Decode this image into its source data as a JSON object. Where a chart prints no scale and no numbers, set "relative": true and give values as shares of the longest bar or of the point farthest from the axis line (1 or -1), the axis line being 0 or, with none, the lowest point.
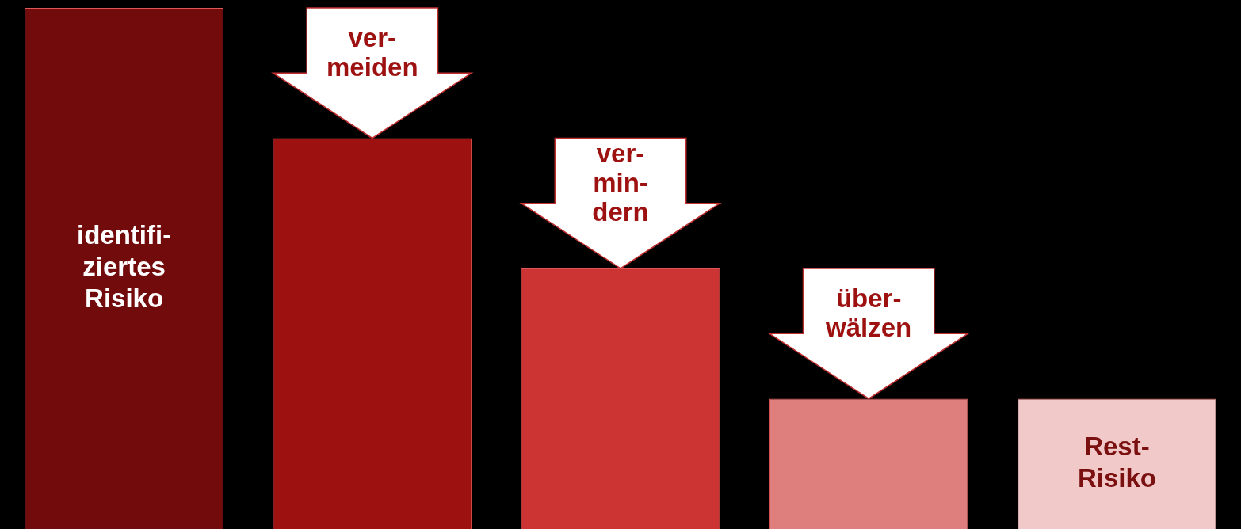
{
  "chart_data": {
    "type": "bar",
    "relative": true,
    "categories": [
      "identifi-\nziertes\nRisiko",
      null,
      null,
      null,
      "Rest-\nRisiko"
    ],
    "values": [
      1,
      0.75,
      0.5,
      0.25,
      0.25
    ],
    "colors": [
      "#720c0c",
      "#9e1111",
      "#cc3333",
      "#de7f7e",
      "#f2c9c9"
    ],
    "annotations": [
      "ver-\nmeiden",
      "ver-\nmin-\ndern",
      "über-\nwälzen"
    ]
  }
}
